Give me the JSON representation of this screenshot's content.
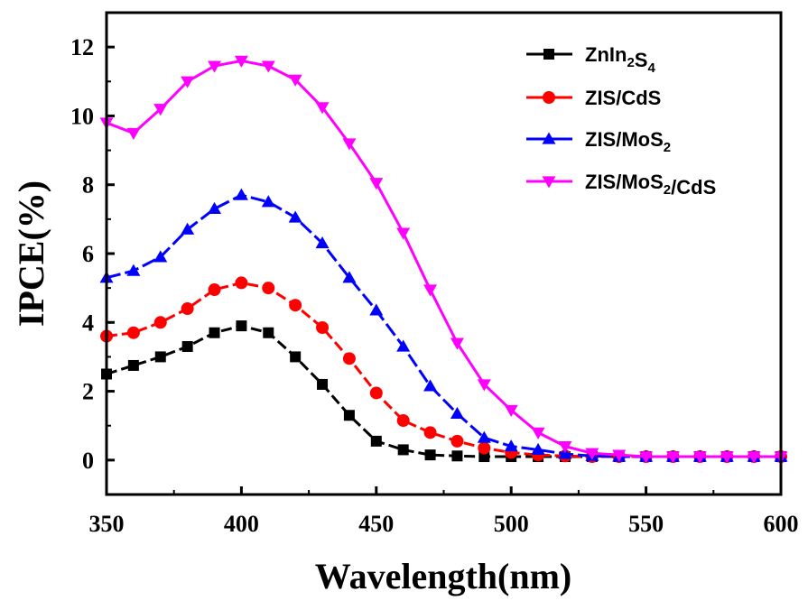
{
  "chart_data": {
    "type": "line",
    "xlabel": "Wavelength(nm)",
    "ylabel": "IPCE(%)",
    "xlim": [
      350,
      600
    ],
    "ylim": [
      -1,
      13
    ],
    "xticks": [
      350,
      400,
      450,
      500,
      550,
      600
    ],
    "yticks": [
      0,
      2,
      4,
      6,
      8,
      10,
      12
    ],
    "grid": false,
    "legend_position": "top-right",
    "x": [
      350,
      360,
      370,
      380,
      390,
      400,
      410,
      420,
      430,
      440,
      450,
      460,
      470,
      480,
      490,
      500,
      510,
      520,
      530,
      540,
      550,
      560,
      570,
      580,
      590,
      600
    ],
    "series": [
      {
        "name": "ZnIn2S4",
        "legend_parts": [
          [
            "ZnIn",
            ""
          ],
          [
            "2",
            "sub"
          ],
          [
            "S",
            ""
          ],
          [
            "4",
            "sub"
          ]
        ],
        "color": "#000000",
        "marker": "square",
        "values": [
          2.5,
          2.75,
          3.0,
          3.3,
          3.7,
          3.9,
          3.7,
          3.0,
          2.2,
          1.3,
          0.55,
          0.3,
          0.15,
          0.12,
          0.1,
          0.1,
          0.1,
          0.1,
          0.1,
          0.1,
          0.1,
          0.1,
          0.1,
          0.1,
          0.1,
          0.1
        ]
      },
      {
        "name": "ZIS/CdS",
        "legend_parts": [
          [
            "ZIS/CdS",
            ""
          ]
        ],
        "color": "#ff0000",
        "marker": "circle",
        "values": [
          3.6,
          3.7,
          4.0,
          4.4,
          4.95,
          5.15,
          5.0,
          4.5,
          3.85,
          2.95,
          1.95,
          1.15,
          0.8,
          0.55,
          0.35,
          0.22,
          0.15,
          0.12,
          0.1,
          0.1,
          0.1,
          0.1,
          0.1,
          0.1,
          0.1,
          0.1
        ]
      },
      {
        "name": "ZIS/MoS2",
        "legend_parts": [
          [
            "ZIS/MoS",
            ""
          ],
          [
            "2",
            "sub"
          ]
        ],
        "color": "#0000ff",
        "marker": "triangle-up",
        "values": [
          5.3,
          5.5,
          5.9,
          6.7,
          7.3,
          7.7,
          7.5,
          7.05,
          6.3,
          5.3,
          4.35,
          3.3,
          2.15,
          1.35,
          0.65,
          0.4,
          0.3,
          0.18,
          0.12,
          0.1,
          0.1,
          0.1,
          0.1,
          0.1,
          0.1,
          0.1
        ]
      },
      {
        "name": "ZIS/MoS2/CdS",
        "legend_parts": [
          [
            "ZIS/MoS",
            ""
          ],
          [
            "2",
            "sub"
          ],
          [
            "/CdS",
            ""
          ]
        ],
        "color": "#ff00ff",
        "marker": "triangle-down",
        "values": [
          9.8,
          9.5,
          10.2,
          11.0,
          11.45,
          11.6,
          11.45,
          11.05,
          10.25,
          9.2,
          8.05,
          6.6,
          4.95,
          3.4,
          2.2,
          1.45,
          0.8,
          0.4,
          0.2,
          0.15,
          0.1,
          0.1,
          0.1,
          0.1,
          0.1,
          0.1
        ]
      }
    ]
  }
}
